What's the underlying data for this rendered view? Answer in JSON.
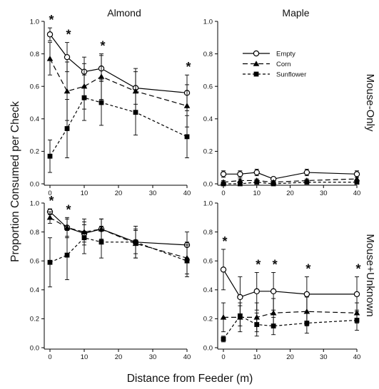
{
  "figure": {
    "xlabel": "Distance from Feeder (m)",
    "ylabel": "Proportion Consumed per Check"
  },
  "chart_data": [
    {
      "type": "line",
      "title": "Almond",
      "row_label": "",
      "x": [
        0,
        5,
        10,
        15,
        25,
        40
      ],
      "xlim": [
        0,
        40
      ],
      "ylim": [
        0,
        1
      ],
      "xticks": [
        0,
        10,
        20,
        30,
        40
      ],
      "yticks": [
        0.0,
        0.2,
        0.4,
        0.6,
        0.8,
        1.0
      ],
      "series": [
        {
          "name": "Empty",
          "values": [
            0.92,
            0.78,
            0.69,
            0.71,
            0.59,
            0.56
          ],
          "err": [
            0.04,
            0.09,
            0.09,
            0.08,
            0.1,
            0.11
          ]
        },
        {
          "name": "Corn",
          "values": [
            0.77,
            0.57,
            0.6,
            0.66,
            0.57,
            0.48
          ],
          "err": [
            0.1,
            0.18,
            0.14,
            0.14,
            0.14,
            0.13
          ]
        },
        {
          "name": "Sunflower",
          "values": [
            0.17,
            0.34,
            0.53,
            0.5,
            0.44,
            0.29
          ],
          "err": [
            0.1,
            0.18,
            0.14,
            0.14,
            0.14,
            0.13
          ]
        }
      ],
      "significant_x": [
        0,
        5,
        15,
        40
      ],
      "marker_label": "*"
    },
    {
      "type": "line",
      "title": "Maple",
      "row_label": "Mouse-Only",
      "x": [
        0,
        5,
        10,
        15,
        25,
        40
      ],
      "xlim": [
        0,
        40
      ],
      "ylim": [
        0,
        1
      ],
      "xticks": [
        0,
        10,
        20,
        30,
        40
      ],
      "yticks": [
        0.0,
        0.2,
        0.4,
        0.6,
        0.8,
        1.0
      ],
      "series": [
        {
          "name": "Empty",
          "values": [
            0.06,
            0.06,
            0.07,
            0.03,
            0.07,
            0.06
          ],
          "err": [
            0.02,
            0.02,
            0.02,
            0.01,
            0.02,
            0.02
          ]
        },
        {
          "name": "Corn",
          "values": [
            0.01,
            0.02,
            0.02,
            0.01,
            0.02,
            0.03
          ],
          "err": [
            0.01,
            0.01,
            0.01,
            0.01,
            0.01,
            0.01
          ]
        },
        {
          "name": "Sunflower",
          "values": [
            0.0,
            0.0,
            0.01,
            0.0,
            0.01,
            0.01
          ],
          "err": [
            0.01,
            0.01,
            0.01,
            0.01,
            0.01,
            0.01
          ]
        }
      ],
      "significant_x": [],
      "marker_label": "*"
    },
    {
      "type": "line",
      "title": "",
      "row_label": "",
      "x": [
        0,
        5,
        10,
        15,
        25,
        40
      ],
      "xlim": [
        0,
        40
      ],
      "ylim": [
        0,
        1
      ],
      "xticks": [
        0,
        10,
        20,
        30,
        40
      ],
      "yticks": [
        0.0,
        0.2,
        0.4,
        0.6,
        0.8,
        1.0
      ],
      "series": [
        {
          "name": "Empty",
          "values": [
            0.94,
            0.83,
            0.79,
            0.82,
            0.73,
            0.71
          ],
          "err": [
            0.02,
            0.06,
            0.06,
            0.07,
            0.08,
            0.09
          ]
        },
        {
          "name": "Corn",
          "values": [
            0.9,
            0.83,
            0.8,
            0.82,
            0.72,
            0.62
          ],
          "err": [
            0.04,
            0.07,
            0.09,
            0.07,
            0.1,
            0.11
          ]
        },
        {
          "name": "Sunflower",
          "values": [
            0.59,
            0.64,
            0.76,
            0.73,
            0.73,
            0.6
          ],
          "err": [
            0.17,
            0.17,
            0.11,
            0.11,
            0.11,
            0.11
          ]
        }
      ],
      "significant_x": [
        0,
        5
      ],
      "marker_label": "*"
    },
    {
      "type": "line",
      "title": "",
      "row_label": "Mouse+Unknown",
      "x": [
        0,
        5,
        10,
        15,
        25,
        40
      ],
      "xlim": [
        0,
        40
      ],
      "ylim": [
        0,
        1
      ],
      "xticks": [
        0,
        10,
        20,
        30,
        40
      ],
      "yticks": [
        0.0,
        0.2,
        0.4,
        0.6,
        0.8,
        1.0
      ],
      "series": [
        {
          "name": "Empty",
          "values": [
            0.54,
            0.35,
            0.39,
            0.39,
            0.37,
            0.37
          ],
          "err": [
            0.14,
            0.14,
            0.13,
            0.13,
            0.12,
            0.12
          ]
        },
        {
          "name": "Corn",
          "values": [
            0.21,
            0.21,
            0.21,
            0.24,
            0.25,
            0.24
          ],
          "err": [
            0.1,
            0.1,
            0.1,
            0.1,
            0.1,
            0.07
          ]
        },
        {
          "name": "Sunflower",
          "values": [
            0.06,
            0.22,
            0.16,
            0.15,
            0.17,
            0.19
          ],
          "err": [
            0.02,
            0.07,
            0.08,
            0.06,
            0.07,
            0.07
          ]
        }
      ],
      "significant_x": [
        0,
        10,
        15,
        25,
        40
      ],
      "marker_label": "*"
    }
  ]
}
